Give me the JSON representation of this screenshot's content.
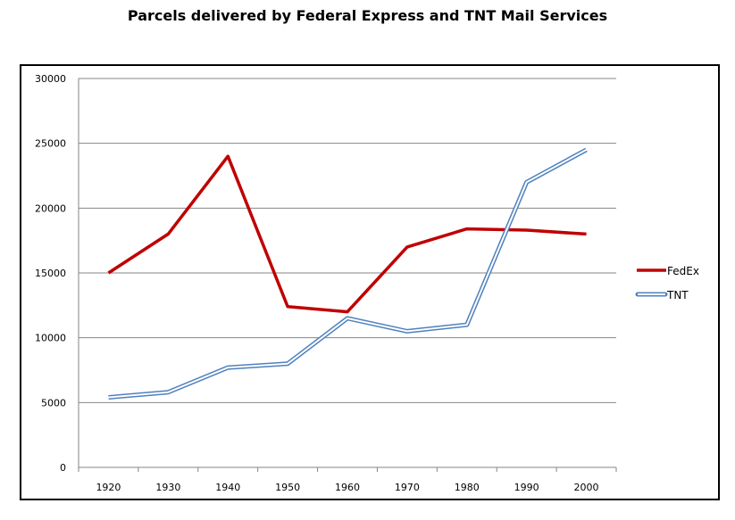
{
  "chart_data": {
    "type": "line",
    "title": "Parcels delivered by Federal Express and TNT Mail Services",
    "xlabel": "",
    "ylabel": "",
    "categories": [
      "1920",
      "1930",
      "1940",
      "1950",
      "1960",
      "1970",
      "1980",
      "1990",
      "2000"
    ],
    "ylim": [
      0,
      30000
    ],
    "yticks": [
      0,
      5000,
      10000,
      15000,
      20000,
      25000,
      30000
    ],
    "grid": true,
    "legend_position": "right",
    "series": [
      {
        "name": "FedEx",
        "color": "#c00000",
        "style": "solid",
        "values": [
          15000,
          18000,
          24000,
          12400,
          12000,
          17000,
          18400,
          18300,
          18000
        ]
      },
      {
        "name": "TNT",
        "color": "#4f81bd",
        "style": "double",
        "values": [
          5400,
          5800,
          7700,
          8000,
          11500,
          10500,
          11000,
          22000,
          24500
        ]
      }
    ]
  }
}
